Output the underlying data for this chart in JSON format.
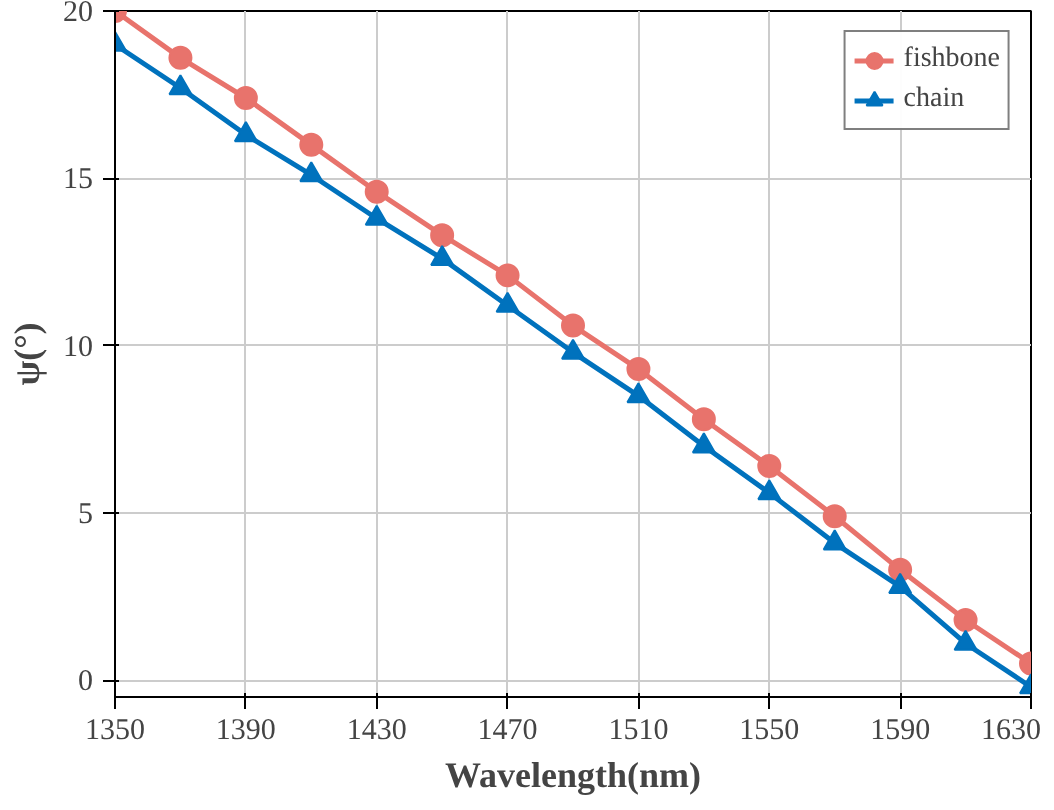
{
  "chart_data": {
    "type": "line",
    "xlabel": "Wavelength(nm)",
    "ylabel": "ψ(°)",
    "x": [
      1350,
      1370,
      1390,
      1410,
      1430,
      1450,
      1470,
      1490,
      1510,
      1530,
      1550,
      1570,
      1590,
      1610,
      1630
    ],
    "series": [
      {
        "name": "fishbone",
        "color": "#e8736c",
        "marker": "circle",
        "values": [
          20,
          18.6,
          17.4,
          16.0,
          14.6,
          13.3,
          12.1,
          10.6,
          9.3,
          7.8,
          6.4,
          4.9,
          3.3,
          1.8,
          0.5
        ]
      },
      {
        "name": "chain",
        "color": "#0072bd",
        "marker": "triangle",
        "values": [
          19.0,
          17.7,
          16.3,
          15.1,
          13.8,
          12.6,
          11.2,
          9.8,
          8.5,
          7.0,
          5.6,
          4.1,
          2.8,
          1.1,
          -0.2
        ]
      }
    ],
    "xlim": [
      1350,
      1630
    ],
    "xticks": [
      1350,
      1390,
      1430,
      1470,
      1510,
      1550,
      1590,
      1630
    ],
    "ylim": [
      -0.5,
      20
    ],
    "yticks": [
      0,
      5,
      10,
      15,
      20
    ],
    "grid": true,
    "legend": "top right",
    "line_style": "solid"
  }
}
